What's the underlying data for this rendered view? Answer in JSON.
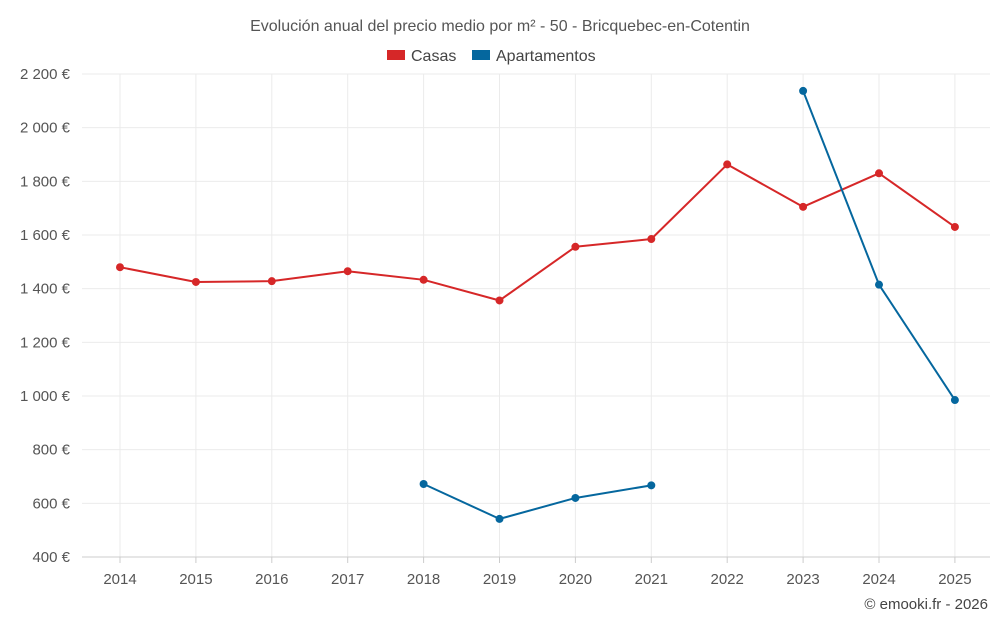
{
  "chart_data": {
    "type": "line",
    "title": "Evolución anual del precio medio por m² - 50 - Bricquebec-en-Cotentin",
    "categories": [
      "2014",
      "2015",
      "2016",
      "2017",
      "2018",
      "2019",
      "2020",
      "2021",
      "2022",
      "2023",
      "2024",
      "2025"
    ],
    "ylim": [
      400,
      2200
    ],
    "yticks": [
      400,
      600,
      800,
      1000,
      1200,
      1400,
      1600,
      1800,
      2000,
      2200
    ],
    "ytick_labels": [
      "400 €",
      "600 €",
      "800 €",
      "1 000 €",
      "1 200 €",
      "1 400 €",
      "1 600 €",
      "1 800 €",
      "2 000 €",
      "2 200 €"
    ],
    "grid": true,
    "legend_position": "top-center",
    "series": [
      {
        "name": "Casas",
        "color": "#d62728",
        "values": [
          1480,
          1425,
          1428,
          1465,
          1433,
          1356,
          1556,
          1585,
          1863,
          1705,
          1830,
          1630
        ]
      },
      {
        "name": "Apartamentos",
        "color": "#05679e",
        "values": [
          null,
          null,
          null,
          null,
          672,
          542,
          620,
          667,
          null,
          2137,
          1415,
          985
        ]
      }
    ]
  },
  "credit": "© emooki.fr - 2026"
}
